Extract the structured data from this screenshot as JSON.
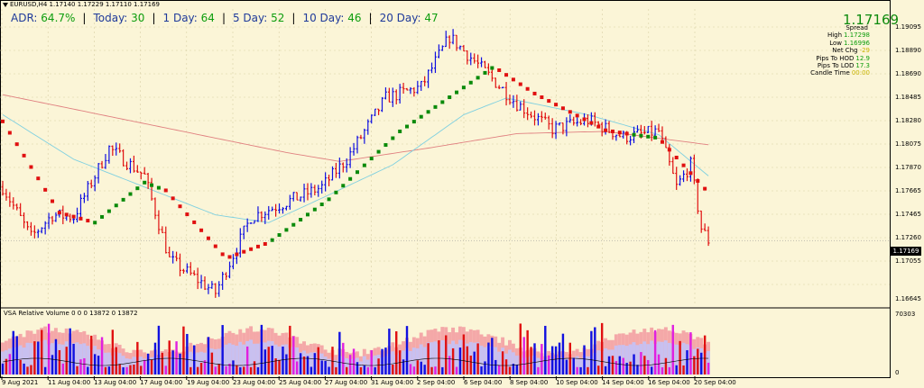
{
  "header": {
    "symbol_line": "EURUSD,H4  1.17140 1.17229 1.17110 1.17169"
  },
  "adr_bar": [
    {
      "label": "ADR:",
      "value": "64.7%"
    },
    {
      "label": "Today:",
      "value": "30"
    },
    {
      "label": "1 Day:",
      "value": "64"
    },
    {
      "label": "5 Day:",
      "value": "52"
    },
    {
      "label": "10 Day:",
      "value": "46"
    },
    {
      "label": "20 Day:",
      "value": "47"
    }
  ],
  "info_panel": {
    "price": "1.17169",
    "rows": [
      {
        "label": "Spread",
        "value": ""
      },
      {
        "label": "High",
        "value": "1.17298"
      },
      {
        "label": "Low",
        "value": "1.16996"
      },
      {
        "label": "Net Chg",
        "value": "-29"
      },
      {
        "label": "Pips To HOD",
        "value": "12.9"
      },
      {
        "label": "Pips To LOD",
        "value": "17.3"
      },
      {
        "label": "Candle Time",
        "value": "00:00"
      }
    ]
  },
  "price_axis": [
    "1.19095",
    "1.18890",
    "1.18690",
    "1.18485",
    "1.18280",
    "1.18075",
    "1.17870",
    "1.17665",
    "1.17465",
    "1.17260",
    "1.17055",
    "1.16645"
  ],
  "current_price_tag": "1.17169",
  "volume_panel": {
    "title": "VSA Relative Volume 0 0 0 13872 0 13872",
    "axis_top": "70303",
    "axis_bottom": "0"
  },
  "time_axis": [
    "9 Aug 2021",
    "11 Aug 04:00",
    "13 Aug 04:00",
    "17 Aug 04:00",
    "19 Aug 04:00",
    "23 Aug 04:00",
    "25 Aug 04:00",
    "27 Aug 04:00",
    "31 Aug 04:00",
    "2 Sep 04:00",
    "6 Sep 04:00",
    "8 Sep 04:00",
    "10 Sep 04:00",
    "14 Sep 04:00",
    "16 Sep 04:00",
    "20 Sep 04:00"
  ],
  "colors": {
    "background": "#fbf5d7",
    "bull_candle": "#1010e0",
    "bear_candle": "#e01010",
    "trend_up": "#0a8a0a",
    "trend_down": "#e01010",
    "ma_slow": "#e08080",
    "ma_fast": "#7fd0e0",
    "volume_pink": "#f4a8a8",
    "volume_lavender": "#c8c0f0",
    "volume_magenta": "#e020e0"
  },
  "chart_data": {
    "type": "candlestick",
    "symbol": "EURUSD",
    "timeframe": "H4",
    "ohlc_last": {
      "open": 1.1714,
      "high": 1.17229,
      "low": 1.1711,
      "close": 1.17169
    },
    "ylim": [
      1.1658,
      1.1925
    ],
    "trend_path": [
      {
        "bar": 0,
        "price": 1.1824,
        "dir": "down"
      },
      {
        "bar": 16,
        "price": 1.1742,
        "dir": "down"
      },
      {
        "bar": 26,
        "price": 1.1733,
        "dir": "up"
      },
      {
        "bar": 40,
        "price": 1.1769,
        "dir": "up"
      },
      {
        "bar": 46,
        "price": 1.1762,
        "dir": "down"
      },
      {
        "bar": 63,
        "price": 1.1701,
        "dir": "down"
      },
      {
        "bar": 75,
        "price": 1.1715,
        "dir": "up"
      },
      {
        "bar": 92,
        "price": 1.1754,
        "dir": "up"
      },
      {
        "bar": 112,
        "price": 1.1815,
        "dir": "up"
      },
      {
        "bar": 138,
        "price": 1.1872,
        "dir": "up"
      },
      {
        "bar": 140,
        "price": 1.187,
        "dir": "down"
      },
      {
        "bar": 150,
        "price": 1.1849,
        "dir": "down"
      },
      {
        "bar": 170,
        "price": 1.1816,
        "dir": "down"
      },
      {
        "bar": 178,
        "price": 1.1812,
        "dir": "up"
      },
      {
        "bar": 185,
        "price": 1.1809,
        "dir": "down"
      },
      {
        "bar": 199,
        "price": 1.176,
        "dir": "down"
      }
    ],
    "price_waypoints": [
      {
        "bar": 0,
        "price": 1.1765
      },
      {
        "bar": 8,
        "price": 1.172
      },
      {
        "bar": 14,
        "price": 1.174
      },
      {
        "bar": 20,
        "price": 1.1738
      },
      {
        "bar": 30,
        "price": 1.18
      },
      {
        "bar": 40,
        "price": 1.1775
      },
      {
        "bar": 47,
        "price": 1.17
      },
      {
        "bar": 60,
        "price": 1.167
      },
      {
        "bar": 70,
        "price": 1.1738
      },
      {
        "bar": 90,
        "price": 1.1765
      },
      {
        "bar": 97,
        "price": 1.179
      },
      {
        "bar": 108,
        "price": 1.1845
      },
      {
        "bar": 118,
        "price": 1.1855
      },
      {
        "bar": 126,
        "price": 1.19
      },
      {
        "bar": 134,
        "price": 1.1875
      },
      {
        "bar": 145,
        "price": 1.184
      },
      {
        "bar": 155,
        "price": 1.1817
      },
      {
        "bar": 165,
        "price": 1.1825
      },
      {
        "bar": 175,
        "price": 1.181
      },
      {
        "bar": 185,
        "price": 1.1815
      },
      {
        "bar": 190,
        "price": 1.1765
      },
      {
        "bar": 194,
        "price": 1.1785
      },
      {
        "bar": 197,
        "price": 1.1728
      },
      {
        "bar": 199,
        "price": 1.1717
      }
    ],
    "ma_slow": [
      {
        "bar": 0,
        "price": 1.1848
      },
      {
        "bar": 40,
        "price": 1.1822
      },
      {
        "bar": 80,
        "price": 1.1796
      },
      {
        "bar": 95,
        "price": 1.1788
      },
      {
        "bar": 120,
        "price": 1.18
      },
      {
        "bar": 145,
        "price": 1.1813
      },
      {
        "bar": 170,
        "price": 1.1815
      },
      {
        "bar": 199,
        "price": 1.1803
      }
    ],
    "ma_fast": [
      {
        "bar": 0,
        "price": 1.183
      },
      {
        "bar": 20,
        "price": 1.179
      },
      {
        "bar": 40,
        "price": 1.1765
      },
      {
        "bar": 60,
        "price": 1.174
      },
      {
        "bar": 75,
        "price": 1.1733
      },
      {
        "bar": 90,
        "price": 1.1755
      },
      {
        "bar": 110,
        "price": 1.1785
      },
      {
        "bar": 130,
        "price": 1.183
      },
      {
        "bar": 142,
        "price": 1.1845
      },
      {
        "bar": 165,
        "price": 1.183
      },
      {
        "bar": 185,
        "price": 1.1812
      },
      {
        "bar": 199,
        "price": 1.1775
      }
    ]
  }
}
